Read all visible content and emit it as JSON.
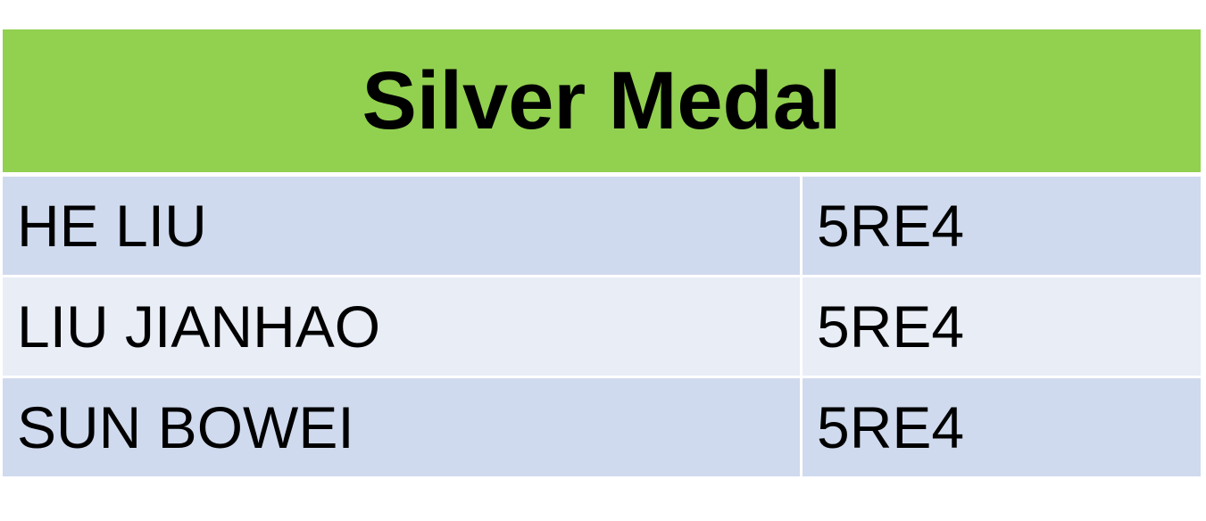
{
  "table": {
    "title": "Silver Medal",
    "rows": [
      {
        "name": "HE LIU",
        "class": "5RE4"
      },
      {
        "name": "LIU JIANHAO",
        "class": "5RE4"
      },
      {
        "name": "SUN BOWEI",
        "class": "5RE4"
      }
    ]
  },
  "colors": {
    "header_bg": "#92d050",
    "row_dark": "#cfdaee",
    "row_light": "#e8edf6"
  }
}
